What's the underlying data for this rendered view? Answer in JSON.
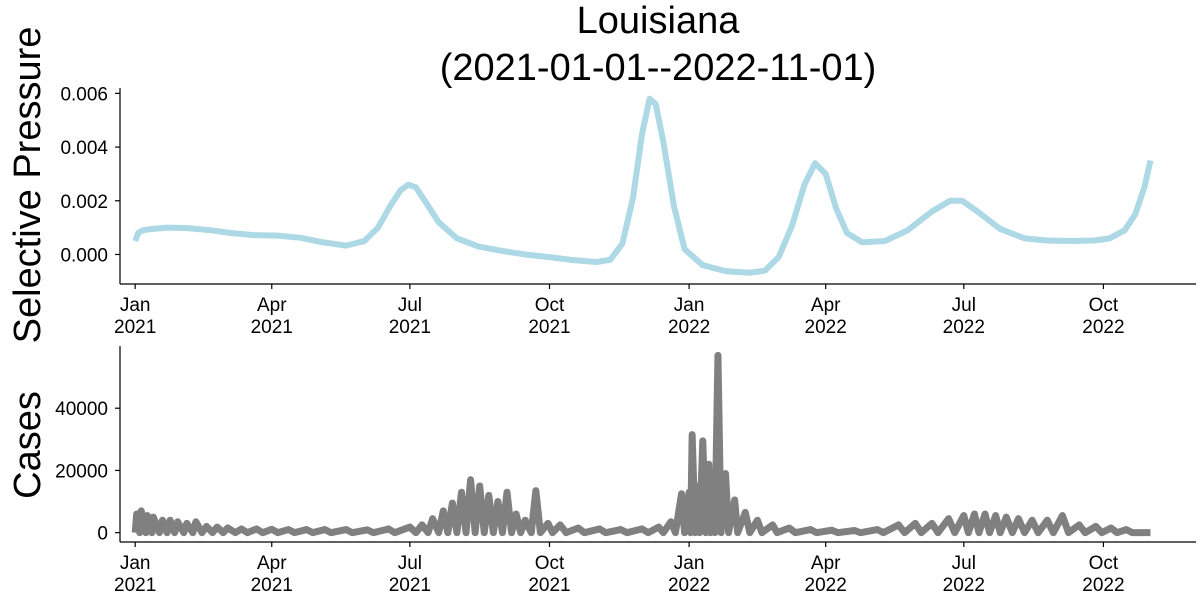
{
  "figure": {
    "title_line1": "Louisiana",
    "title_line2": "(2021-01-01--2022-11-01)"
  },
  "chart_data": [
    {
      "type": "line",
      "name": "selective-pressure",
      "title": "Louisiana\n(2021-01-01--2022-11-01)",
      "ylabel": "Selective Pressure",
      "xlabel": "",
      "color": "#add8e6",
      "x_range": [
        "2020-12-22",
        "2022-12-01"
      ],
      "ylim": [
        -0.0011,
        0.0062
      ],
      "y_ticks": [
        0.0,
        0.002,
        0.004,
        0.006
      ],
      "y_tick_labels": [
        "0.000",
        "0.002",
        "0.004",
        "0.006"
      ],
      "x_ticks": [
        "2021-01-01",
        "2021-04-01",
        "2021-07-01",
        "2021-10-01",
        "2022-01-01",
        "2022-04-01",
        "2022-07-01",
        "2022-10-01"
      ],
      "x_tick_labels": [
        [
          "Jan",
          "2021"
        ],
        [
          "Apr",
          "2021"
        ],
        [
          "Jul",
          "2021"
        ],
        [
          "Oct",
          "2021"
        ],
        [
          "Jan",
          "2022"
        ],
        [
          "Apr",
          "2022"
        ],
        [
          "Jul",
          "2022"
        ],
        [
          "Oct",
          "2022"
        ]
      ],
      "grid": false,
      "points": [
        [
          "2021-01-01",
          0.0005
        ],
        [
          "2021-01-03",
          0.0008
        ],
        [
          "2021-01-06",
          0.0009
        ],
        [
          "2021-01-12",
          0.00095
        ],
        [
          "2021-01-22",
          0.001
        ],
        [
          "2021-02-05",
          0.00098
        ],
        [
          "2021-02-20",
          0.0009
        ],
        [
          "2021-03-05",
          0.0008
        ],
        [
          "2021-03-20",
          0.00072
        ],
        [
          "2021-04-05",
          0.0007
        ],
        [
          "2021-04-20",
          0.00062
        ],
        [
          "2021-05-05",
          0.00045
        ],
        [
          "2021-05-20",
          0.00033
        ],
        [
          "2021-06-01",
          0.0005
        ],
        [
          "2021-06-10",
          0.001
        ],
        [
          "2021-06-18",
          0.0018
        ],
        [
          "2021-06-25",
          0.0024
        ],
        [
          "2021-06-30",
          0.0026
        ],
        [
          "2021-07-05",
          0.0025
        ],
        [
          "2021-07-12",
          0.0019
        ],
        [
          "2021-07-20",
          0.0012
        ],
        [
          "2021-08-01",
          0.0006
        ],
        [
          "2021-08-15",
          0.0003
        ],
        [
          "2021-09-01",
          0.00012
        ],
        [
          "2021-09-15",
          0.0
        ],
        [
          "2021-10-01",
          -0.0001
        ],
        [
          "2021-10-15",
          -0.0002
        ],
        [
          "2021-11-01",
          -0.00028
        ],
        [
          "2021-11-10",
          -0.0002
        ],
        [
          "2021-11-18",
          0.0004
        ],
        [
          "2021-11-25",
          0.0021
        ],
        [
          "2021-12-01",
          0.0045
        ],
        [
          "2021-12-06",
          0.0058
        ],
        [
          "2021-12-10",
          0.0056
        ],
        [
          "2021-12-15",
          0.0042
        ],
        [
          "2021-12-22",
          0.0018
        ],
        [
          "2021-12-29",
          0.0002
        ],
        [
          "2022-01-10",
          -0.0004
        ],
        [
          "2022-01-25",
          -0.00062
        ],
        [
          "2022-02-10",
          -0.00068
        ],
        [
          "2022-02-20",
          -0.0006
        ],
        [
          "2022-03-01",
          -0.0001
        ],
        [
          "2022-03-10",
          0.0011
        ],
        [
          "2022-03-18",
          0.0026
        ],
        [
          "2022-03-25",
          0.0034
        ],
        [
          "2022-04-01",
          0.003
        ],
        [
          "2022-04-08",
          0.0017
        ],
        [
          "2022-04-15",
          0.0008
        ],
        [
          "2022-04-25",
          0.00045
        ],
        [
          "2022-05-10",
          0.0005
        ],
        [
          "2022-05-25",
          0.0009
        ],
        [
          "2022-06-10",
          0.0016
        ],
        [
          "2022-06-22",
          0.002
        ],
        [
          "2022-06-30",
          0.002
        ],
        [
          "2022-07-10",
          0.0016
        ],
        [
          "2022-07-25",
          0.00095
        ],
        [
          "2022-08-10",
          0.0006
        ],
        [
          "2022-08-25",
          0.00052
        ],
        [
          "2022-09-10",
          0.0005
        ],
        [
          "2022-09-25",
          0.00052
        ],
        [
          "2022-10-05",
          0.0006
        ],
        [
          "2022-10-15",
          0.0009
        ],
        [
          "2022-10-22",
          0.0015
        ],
        [
          "2022-10-28",
          0.0025
        ],
        [
          "2022-11-01",
          0.0035
        ]
      ]
    },
    {
      "type": "line",
      "name": "cases",
      "title": "",
      "ylabel": "Cases",
      "xlabel": "",
      "color": "#808080",
      "x_range": [
        "2020-12-22",
        "2022-12-01"
      ],
      "ylim": [
        -3000,
        60000
      ],
      "y_ticks": [
        0,
        20000,
        40000
      ],
      "y_tick_labels": [
        "0",
        "20000",
        "40000"
      ],
      "x_ticks": [
        "2021-01-01",
        "2021-04-01",
        "2021-07-01",
        "2021-10-01",
        "2022-01-01",
        "2022-04-01",
        "2022-07-01",
        "2022-10-01"
      ],
      "x_tick_labels": [
        [
          "Jan",
          "2021"
        ],
        [
          "Apr",
          "2021"
        ],
        [
          "Jul",
          "2021"
        ],
        [
          "Oct",
          "2021"
        ],
        [
          "Jan",
          "2022"
        ],
        [
          "Apr",
          "2022"
        ],
        [
          "Jul",
          "2022"
        ],
        [
          "Oct",
          "2022"
        ]
      ],
      "grid": false,
      "points": [
        [
          "2021-01-01",
          0
        ],
        [
          "2021-01-02",
          6000
        ],
        [
          "2021-01-04",
          0
        ],
        [
          "2021-01-05",
          7000
        ],
        [
          "2021-01-08",
          0
        ],
        [
          "2021-01-09",
          5500
        ],
        [
          "2021-01-12",
          0
        ],
        [
          "2021-01-13",
          5000
        ],
        [
          "2021-01-17",
          0
        ],
        [
          "2021-01-19",
          4000
        ],
        [
          "2021-01-22",
          0
        ],
        [
          "2021-01-24",
          4000
        ],
        [
          "2021-01-27",
          0
        ],
        [
          "2021-01-29",
          3500
        ],
        [
          "2021-02-02",
          0
        ],
        [
          "2021-02-04",
          3000
        ],
        [
          "2021-02-08",
          0
        ],
        [
          "2021-02-10",
          3500
        ],
        [
          "2021-02-14",
          0
        ],
        [
          "2021-02-17",
          2000
        ],
        [
          "2021-02-21",
          0
        ],
        [
          "2021-02-24",
          1800
        ],
        [
          "2021-02-28",
          0
        ],
        [
          "2021-03-03",
          1500
        ],
        [
          "2021-03-08",
          0
        ],
        [
          "2021-03-12",
          1200
        ],
        [
          "2021-03-16",
          0
        ],
        [
          "2021-03-22",
          1200
        ],
        [
          "2021-03-26",
          0
        ],
        [
          "2021-04-01",
          1100
        ],
        [
          "2021-04-05",
          0
        ],
        [
          "2021-04-12",
          1000
        ],
        [
          "2021-04-16",
          0
        ],
        [
          "2021-04-24",
          1000
        ],
        [
          "2021-04-28",
          0
        ],
        [
          "2021-05-06",
          1000
        ],
        [
          "2021-05-10",
          0
        ],
        [
          "2021-05-20",
          1000
        ],
        [
          "2021-05-24",
          0
        ],
        [
          "2021-06-03",
          900
        ],
        [
          "2021-06-07",
          0
        ],
        [
          "2021-06-17",
          1200
        ],
        [
          "2021-06-21",
          0
        ],
        [
          "2021-07-01",
          1800
        ],
        [
          "2021-07-05",
          0
        ],
        [
          "2021-07-09",
          2500
        ],
        [
          "2021-07-13",
          0
        ],
        [
          "2021-07-16",
          4500
        ],
        [
          "2021-07-20",
          0
        ],
        [
          "2021-07-23",
          7000
        ],
        [
          "2021-07-26",
          0
        ],
        [
          "2021-07-29",
          9500
        ],
        [
          "2021-08-01",
          0
        ],
        [
          "2021-08-04",
          13000
        ],
        [
          "2021-08-07",
          0
        ],
        [
          "2021-08-10",
          17000
        ],
        [
          "2021-08-13",
          0
        ],
        [
          "2021-08-16",
          15000
        ],
        [
          "2021-08-19",
          0
        ],
        [
          "2021-08-22",
          12000
        ],
        [
          "2021-08-25",
          0
        ],
        [
          "2021-08-28",
          10000
        ],
        [
          "2021-08-31",
          0
        ],
        [
          "2021-09-03",
          13000
        ],
        [
          "2021-09-06",
          0
        ],
        [
          "2021-09-09",
          6000
        ],
        [
          "2021-09-12",
          0
        ],
        [
          "2021-09-15",
          4000
        ],
        [
          "2021-09-19",
          0
        ],
        [
          "2021-09-22",
          13500
        ],
        [
          "2021-09-25",
          0
        ],
        [
          "2021-09-30",
          3000
        ],
        [
          "2021-10-03",
          0
        ],
        [
          "2021-10-08",
          2500
        ],
        [
          "2021-10-12",
          0
        ],
        [
          "2021-10-20",
          1500
        ],
        [
          "2021-10-24",
          0
        ],
        [
          "2021-11-03",
          1200
        ],
        [
          "2021-11-07",
          0
        ],
        [
          "2021-11-17",
          1000
        ],
        [
          "2021-11-21",
          0
        ],
        [
          "2021-12-01",
          1200
        ],
        [
          "2021-12-05",
          0
        ],
        [
          "2021-12-12",
          1800
        ],
        [
          "2021-12-15",
          0
        ],
        [
          "2021-12-20",
          3500
        ],
        [
          "2021-12-23",
          0
        ],
        [
          "2021-12-27",
          12500
        ],
        [
          "2021-12-29",
          0
        ],
        [
          "2022-01-01",
          13000
        ],
        [
          "2022-01-02",
          0
        ],
        [
          "2022-01-03",
          31500
        ],
        [
          "2022-01-05",
          0
        ],
        [
          "2022-01-07",
          15000
        ],
        [
          "2022-01-08",
          0
        ],
        [
          "2022-01-10",
          29500
        ],
        [
          "2022-01-12",
          0
        ],
        [
          "2022-01-14",
          22000
        ],
        [
          "2022-01-15",
          0
        ],
        [
          "2022-01-17",
          15500
        ],
        [
          "2022-01-18",
          0
        ],
        [
          "2022-01-20",
          57000
        ],
        [
          "2022-01-22",
          0
        ],
        [
          "2022-01-25",
          19000
        ],
        [
          "2022-01-27",
          0
        ],
        [
          "2022-01-31",
          10500
        ],
        [
          "2022-02-02",
          0
        ],
        [
          "2022-02-07",
          6500
        ],
        [
          "2022-02-10",
          0
        ],
        [
          "2022-02-15",
          4000
        ],
        [
          "2022-02-18",
          0
        ],
        [
          "2022-02-25",
          2500
        ],
        [
          "2022-02-28",
          0
        ],
        [
          "2022-03-08",
          1500
        ],
        [
          "2022-03-12",
          0
        ],
        [
          "2022-03-22",
          1000
        ],
        [
          "2022-03-26",
          0
        ],
        [
          "2022-04-05",
          800
        ],
        [
          "2022-04-09",
          0
        ],
        [
          "2022-04-20",
          700
        ],
        [
          "2022-04-24",
          0
        ],
        [
          "2022-05-05",
          1000
        ],
        [
          "2022-05-09",
          0
        ],
        [
          "2022-05-19",
          2500
        ],
        [
          "2022-05-23",
          0
        ],
        [
          "2022-05-30",
          3000
        ],
        [
          "2022-06-03",
          0
        ],
        [
          "2022-06-10",
          3000
        ],
        [
          "2022-06-14",
          0
        ],
        [
          "2022-06-21",
          4500
        ],
        [
          "2022-06-25",
          0
        ],
        [
          "2022-07-01",
          5500
        ],
        [
          "2022-07-04",
          0
        ],
        [
          "2022-07-08",
          6000
        ],
        [
          "2022-07-11",
          0
        ],
        [
          "2022-07-15",
          6000
        ],
        [
          "2022-07-18",
          0
        ],
        [
          "2022-07-22",
          5500
        ],
        [
          "2022-07-25",
          0
        ],
        [
          "2022-07-29",
          5000
        ],
        [
          "2022-08-02",
          0
        ],
        [
          "2022-08-06",
          4500
        ],
        [
          "2022-08-10",
          0
        ],
        [
          "2022-08-15",
          4000
        ],
        [
          "2022-08-19",
          0
        ],
        [
          "2022-08-25",
          4000
        ],
        [
          "2022-08-29",
          0
        ],
        [
          "2022-09-04",
          5500
        ],
        [
          "2022-09-08",
          0
        ],
        [
          "2022-09-15",
          2500
        ],
        [
          "2022-09-19",
          0
        ],
        [
          "2022-09-26",
          2000
        ],
        [
          "2022-09-30",
          0
        ],
        [
          "2022-10-06",
          1500
        ],
        [
          "2022-10-10",
          0
        ],
        [
          "2022-10-16",
          1000
        ],
        [
          "2022-10-20",
          0
        ],
        [
          "2022-11-01",
          0
        ]
      ]
    }
  ]
}
